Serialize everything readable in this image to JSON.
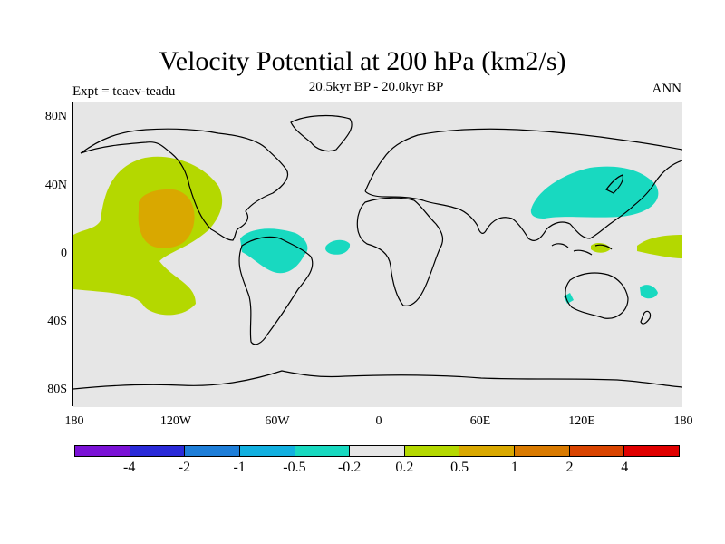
{
  "title": "Velocity Potential at 200 hPa (km2/s)",
  "subtitle": "20.5kyr BP - 20.0kyr BP",
  "expt": "Expt = teaev-teadu",
  "season": "ANN",
  "lat_labels": [
    "80N",
    "40N",
    "0",
    "40S",
    "80S"
  ],
  "lon_labels": [
    "180",
    "120W",
    "60W",
    "0",
    "60E",
    "120E",
    "180"
  ],
  "colorbar": {
    "colors": [
      "#7b12d6",
      "#2a2ad8",
      "#1e7ed8",
      "#12b0e0",
      "#18d9c0",
      "#e6e6e6",
      "#b4d800",
      "#d9a800",
      "#d97a00",
      "#d94400",
      "#e00000"
    ],
    "labels": [
      "-4",
      "-2",
      "-1",
      "-0.5",
      "-0.2",
      "0.2",
      "0.5",
      "1",
      "2",
      "4"
    ]
  },
  "colors": {
    "background": "#e6e6e6",
    "positive_weak": "#b4d800",
    "positive_mid": "#d9a800",
    "negative_weak": "#18d9c0"
  }
}
